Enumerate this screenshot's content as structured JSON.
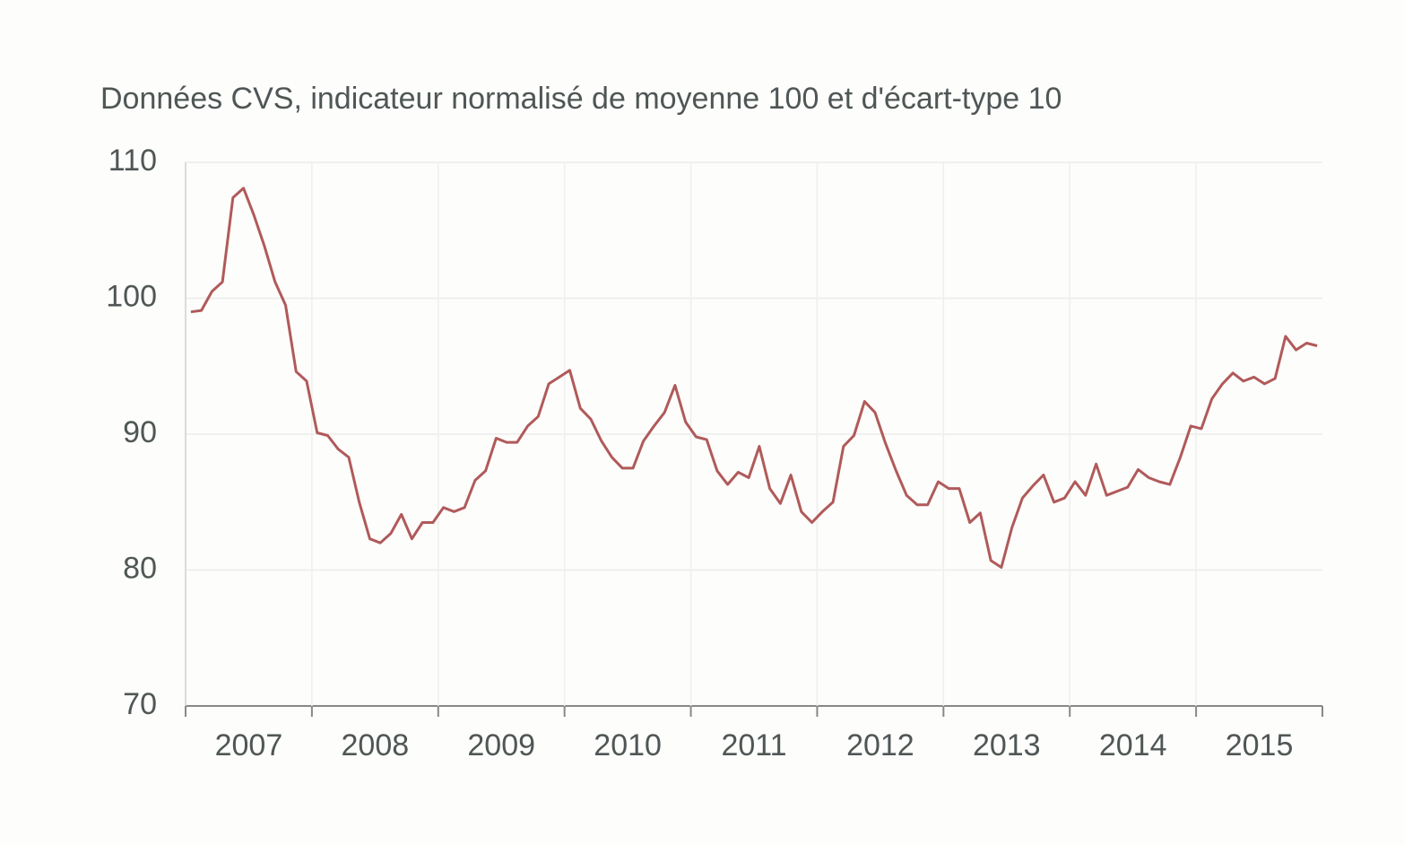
{
  "chart_data": {
    "type": "line",
    "subtitle": "Données CVS, indicateur normalisé de moyenne 100 et d'écart-type 10",
    "categories": [
      null,
      null,
      null,
      null,
      null,
      null,
      "2007",
      null,
      null,
      null,
      null,
      null,
      null,
      null,
      null,
      null,
      null,
      null,
      "2008",
      null,
      null,
      null,
      null,
      null,
      null,
      null,
      null,
      null,
      null,
      null,
      "2009",
      null,
      null,
      null,
      null,
      null,
      null,
      null,
      null,
      null,
      null,
      null,
      "2010",
      null,
      null,
      null,
      null,
      null,
      null,
      null,
      null,
      null,
      null,
      null,
      "2011",
      null,
      null,
      null,
      null,
      null,
      null,
      null,
      null,
      null,
      null,
      null,
      "2012",
      null,
      null,
      null,
      null,
      null,
      null,
      null,
      null,
      null,
      null,
      null,
      "2013",
      null,
      null,
      null,
      null,
      null,
      null,
      null,
      null,
      null,
      null,
      null,
      "2014",
      null,
      null,
      null,
      null,
      null,
      null,
      null,
      null,
      null,
      null,
      null,
      "2015",
      null,
      null,
      null,
      null,
      null
    ],
    "series": [
      {
        "color": "#b05a5a",
        "values": [
          99.0,
          99.1,
          100.5,
          101.2,
          107.4,
          108.1,
          106.1,
          103.8,
          101.2,
          99.5,
          94.6,
          93.9,
          90.1,
          89.9,
          88.9,
          88.3,
          85.0,
          82.3,
          82.0,
          82.7,
          84.1,
          82.3,
          83.5,
          83.5,
          84.6,
          84.3,
          84.6,
          86.6,
          87.3,
          89.7,
          89.4,
          89.4,
          90.6,
          91.3,
          93.7,
          94.2,
          94.7,
          91.9,
          91.1,
          89.5,
          88.3,
          87.5,
          87.5,
          89.5,
          90.6,
          91.6,
          93.6,
          90.9,
          89.8,
          89.6,
          87.3,
          86.3,
          87.2,
          86.8,
          89.1,
          86.0,
          84.9,
          87.0,
          84.3,
          83.5,
          84.3,
          85.0,
          89.1,
          89.9,
          92.4,
          91.6,
          89.3,
          87.3,
          85.5,
          84.8,
          84.8,
          86.5,
          86.0,
          86.0,
          83.5,
          84.2,
          80.7,
          80.2,
          83.1,
          85.3,
          86.2,
          87.0,
          85.0,
          85.3,
          86.5,
          85.5,
          87.8,
          85.5,
          85.8,
          86.1,
          87.4,
          86.8,
          86.5,
          86.3,
          88.3,
          90.6,
          90.4,
          92.6,
          93.7,
          94.5,
          93.9,
          94.2,
          93.7,
          94.1,
          97.2,
          96.2,
          96.7,
          96.5
        ]
      }
    ],
    "ylim": [
      70,
      110
    ],
    "yticks": [
      70,
      80,
      90,
      100,
      110
    ],
    "grid": true
  }
}
